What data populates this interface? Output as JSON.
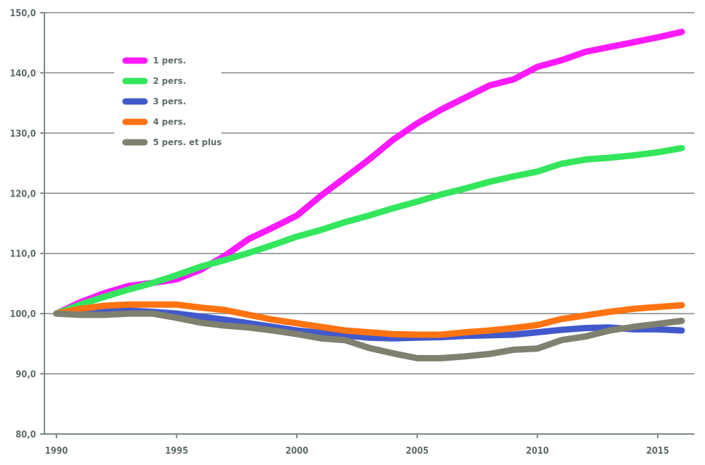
{
  "chart_data": {
    "type": "line",
    "title": "",
    "xlabel": "",
    "ylabel": "",
    "ylim": [
      80,
      150
    ],
    "xlim": [
      1990,
      2016
    ],
    "yticks": [
      80,
      90,
      100,
      110,
      120,
      130,
      140,
      150
    ],
    "ytick_labels": [
      "80,0",
      "90,0",
      "100,0",
      "110,0",
      "120,0",
      "130,0",
      "140,0",
      "150,0"
    ],
    "xticks": [
      1990,
      1995,
      2000,
      2005,
      2010,
      2015
    ],
    "xtick_labels": [
      "1990",
      "1995",
      "2000",
      "2005",
      "2010",
      "2015"
    ],
    "grid": true,
    "legend": "top-left",
    "x": [
      1990,
      1991,
      1992,
      1993,
      1994,
      1995,
      1996,
      1997,
      1998,
      1999,
      2000,
      2001,
      2002,
      2003,
      2004,
      2005,
      2006,
      2007,
      2008,
      2009,
      2010,
      2011,
      2012,
      2013,
      2014,
      2015,
      2016
    ],
    "series": [
      {
        "name": "1 pers.",
        "color": "#ff1aff",
        "values": [
          100.0,
          101.9,
          103.4,
          104.6,
          105.1,
          105.7,
          107.3,
          109.6,
          112.4,
          114.3,
          116.3,
          119.6,
          122.6,
          125.6,
          128.9,
          131.6,
          133.9,
          135.9,
          137.9,
          138.9,
          141.0,
          142.1,
          143.5,
          144.3,
          145.1,
          145.9,
          146.8
        ]
      },
      {
        "name": "2 pers.",
        "color": "#33e65c",
        "values": [
          100.0,
          101.5,
          102.8,
          104.0,
          105.1,
          106.4,
          107.8,
          108.9,
          110.1,
          111.4,
          112.8,
          113.9,
          115.2,
          116.3,
          117.5,
          118.6,
          119.8,
          120.8,
          121.9,
          122.8,
          123.6,
          124.9,
          125.6,
          125.9,
          126.3,
          126.8,
          127.5
        ]
      },
      {
        "name": "3 pers.",
        "color": "#4259cc",
        "values": [
          100.0,
          100.3,
          100.5,
          100.5,
          100.3,
          100.0,
          99.5,
          99.0,
          98.4,
          97.8,
          97.2,
          96.8,
          96.4,
          96.0,
          95.9,
          96.0,
          96.1,
          96.3,
          96.4,
          96.5,
          96.9,
          97.3,
          97.6,
          97.7,
          97.4,
          97.4,
          97.2
        ]
      },
      {
        "name": "4 pers.",
        "color": "#ff7311",
        "values": [
          100.0,
          100.8,
          101.3,
          101.5,
          101.5,
          101.5,
          101.0,
          100.6,
          99.8,
          99.0,
          98.4,
          97.8,
          97.2,
          96.9,
          96.6,
          96.5,
          96.5,
          96.9,
          97.2,
          97.6,
          98.1,
          99.1,
          99.7,
          100.3,
          100.8,
          101.1,
          101.4
        ]
      },
      {
        "name": "5 pers. et plus",
        "color": "#7f8070",
        "values": [
          100.0,
          99.8,
          99.8,
          100.0,
          100.0,
          99.3,
          98.5,
          98.0,
          97.7,
          97.2,
          96.6,
          95.9,
          95.6,
          94.3,
          93.4,
          92.6,
          92.6,
          92.9,
          93.3,
          94.0,
          94.2,
          95.6,
          96.2,
          97.2,
          97.8,
          98.3,
          98.8
        ]
      }
    ]
  }
}
